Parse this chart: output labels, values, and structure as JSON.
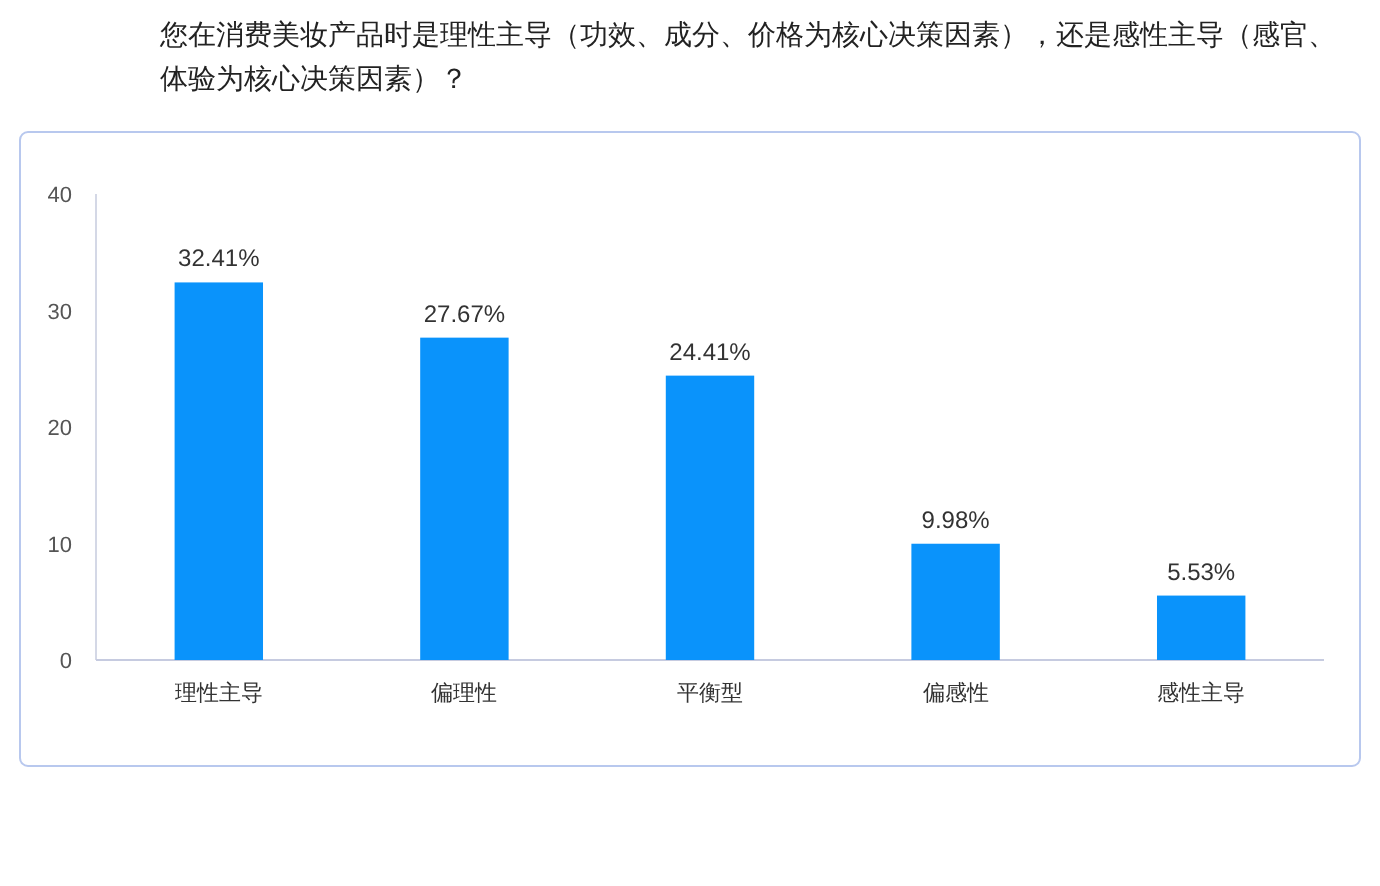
{
  "chart_data": {
    "type": "bar",
    "title": "您在消费美妆产品时是理性主导（功效、成分、价格为核心决策因素），还是感性主导（感官、体验为核心决策因素）？",
    "categories": [
      "理性主导",
      "偏理性",
      "平衡型",
      "偏感性",
      "感性主导"
    ],
    "values": [
      32.41,
      27.67,
      24.41,
      9.98,
      5.53
    ],
    "value_labels": [
      "32.41%",
      "27.67%",
      "24.41%",
      "9.98%",
      "5.53%"
    ],
    "color": "#0a93fb",
    "ylim": [
      0,
      40
    ],
    "yticks": [
      0,
      10,
      20,
      30,
      40
    ],
    "grid": false
  }
}
